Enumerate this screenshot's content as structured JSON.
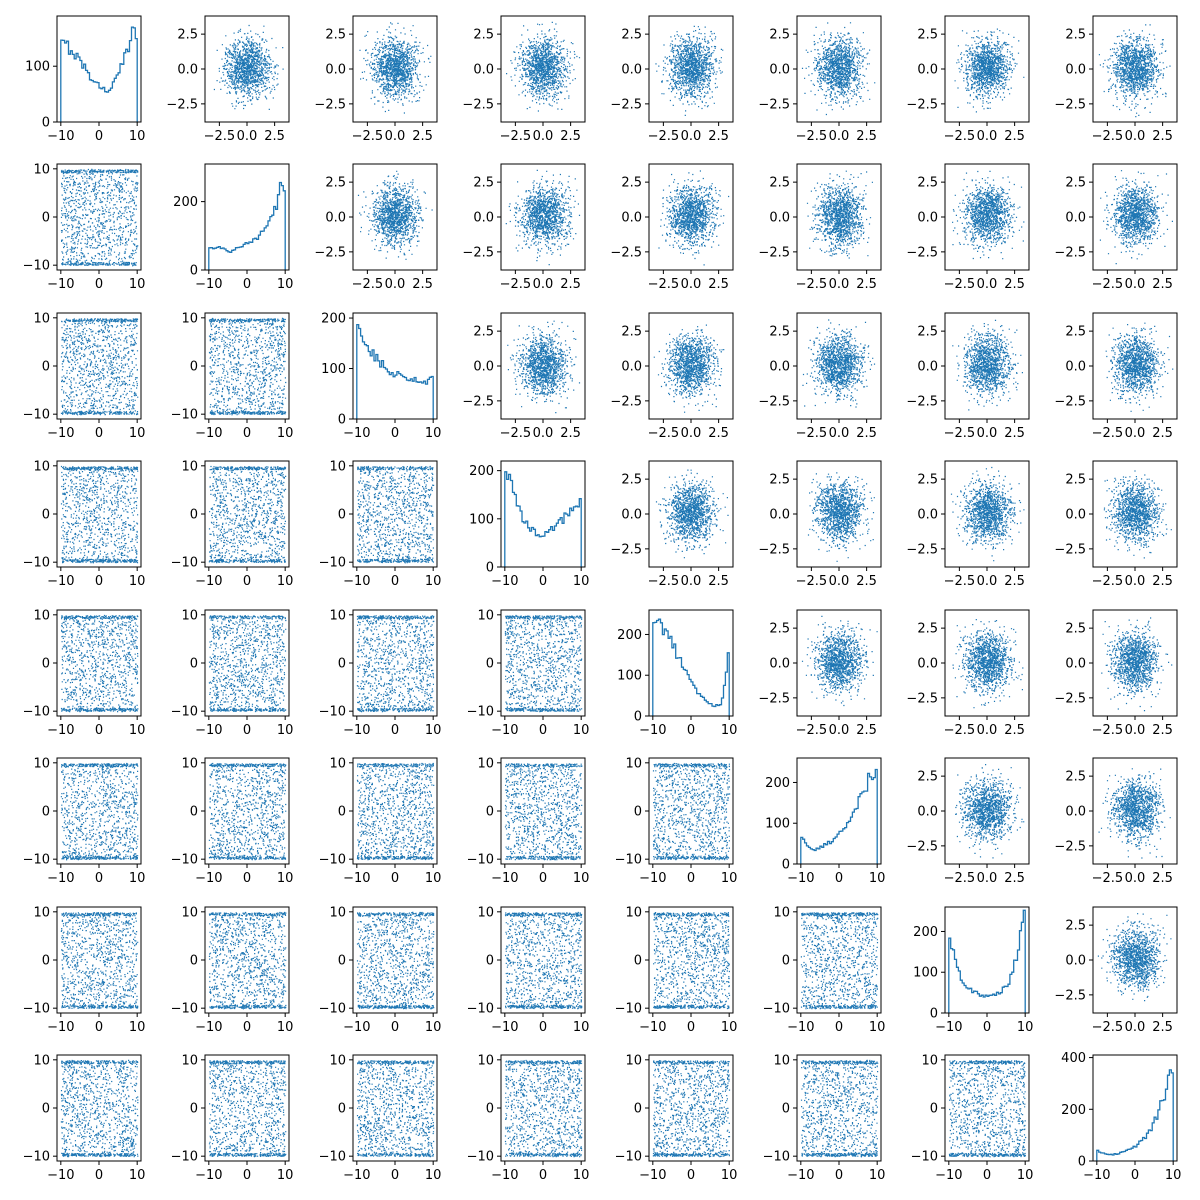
{
  "chart_data": {
    "type": "pair_plot",
    "grid": {
      "rows": 8,
      "cols": 8
    },
    "series_color": "#1f77b4",
    "diagonal_type": "step_histogram",
    "upper_triangle": {
      "type": "scatter",
      "xlim": [
        -3.8,
        3.8
      ],
      "ylim": [
        -3.8,
        3.8
      ],
      "xticks": [
        -2.5,
        0.0,
        2.5
      ],
      "xtick_labels": [
        "-2.5",
        "0.0",
        "2.5"
      ],
      "yticks": [
        -2.5,
        0.0,
        2.5
      ],
      "ytick_labels": [
        "-2.5",
        "0.0",
        "2.5"
      ]
    },
    "lower_triangle": {
      "type": "scatter",
      "xlim": [
        -11,
        11
      ],
      "ylim": [
        -11,
        11
      ],
      "xticks": [
        -10,
        0,
        10
      ],
      "xtick_labels": [
        "-10",
        "0",
        "10"
      ],
      "yticks": [
        -10,
        0,
        10
      ],
      "ytick_labels": [
        "-10",
        "0",
        "10"
      ]
    },
    "diagonal": [
      {
        "xlim": [
          -11,
          11
        ],
        "ylim": [
          0,
          190
        ],
        "yticks": [
          0,
          100
        ],
        "ytick_labels": [
          "0",
          "100"
        ],
        "x": [
          -10,
          -8,
          -6,
          -4,
          -2,
          0,
          2,
          4,
          6,
          8,
          9,
          10
        ],
        "counts": [
          140,
          135,
          120,
          100,
          80,
          65,
          55,
          70,
          100,
          140,
          180,
          150
        ]
      },
      {
        "xlim": [
          -11,
          11
        ],
        "ylim": [
          0,
          310
        ],
        "yticks": [
          0,
          200
        ],
        "ytick_labels": [
          "0",
          "200"
        ],
        "x": [
          -10,
          -8,
          -6,
          -4,
          -2,
          0,
          2,
          4,
          6,
          8,
          9,
          10
        ],
        "counts": [
          70,
          65,
          60,
          55,
          65,
          75,
          90,
          110,
          140,
          200,
          280,
          230
        ]
      },
      {
        "xlim": [
          -11,
          11
        ],
        "ylim": [
          0,
          210
        ],
        "yticks": [
          0,
          100,
          200
        ],
        "ytick_labels": [
          "0",
          "100",
          "200"
        ],
        "x": [
          -10,
          -8,
          -6,
          -4,
          -2,
          0,
          2,
          4,
          6,
          8,
          10
        ],
        "counts": [
          195,
          150,
          130,
          115,
          100,
          90,
          85,
          80,
          75,
          70,
          85
        ]
      },
      {
        "xlim": [
          -11,
          11
        ],
        "ylim": [
          0,
          220
        ],
        "yticks": [
          0,
          100,
          200
        ],
        "ytick_labels": [
          "0",
          "100",
          "200"
        ],
        "x": [
          -10,
          -8,
          -6,
          -4,
          -2,
          0,
          2,
          4,
          6,
          8,
          10
        ],
        "counts": [
          210,
          160,
          110,
          85,
          70,
          65,
          75,
          90,
          105,
          120,
          145
        ]
      },
      {
        "xlim": [
          -11,
          11
        ],
        "ylim": [
          0,
          260
        ],
        "yticks": [
          0,
          100,
          200
        ],
        "ytick_labels": [
          "0",
          "100",
          "200"
        ],
        "x": [
          -10,
          -8,
          -6,
          -4,
          -2,
          0,
          2,
          4,
          6,
          8,
          10
        ],
        "counts": [
          245,
          230,
          200,
          160,
          125,
          90,
          55,
          35,
          25,
          30,
          160
        ]
      },
      {
        "xlim": [
          -11,
          11
        ],
        "ylim": [
          0,
          260
        ],
        "yticks": [
          0,
          100,
          200
        ],
        "ytick_labels": [
          "0",
          "100",
          "200"
        ],
        "x": [
          -10,
          -8,
          -6,
          -4,
          -2,
          0,
          2,
          4,
          6,
          8,
          10
        ],
        "counts": [
          70,
          40,
          35,
          45,
          55,
          75,
          100,
          130,
          165,
          210,
          240
        ]
      },
      {
        "xlim": [
          -11,
          11
        ],
        "ylim": [
          0,
          260
        ],
        "yticks": [
          0,
          100,
          200
        ],
        "ytick_labels": [
          "0",
          "100",
          "200"
        ],
        "x": [
          -10,
          -8,
          -6,
          -4,
          -2,
          0,
          2,
          4,
          6,
          8,
          10
        ],
        "counts": [
          200,
          110,
          70,
          55,
          45,
          40,
          45,
          55,
          80,
          150,
          245
        ]
      },
      {
        "xlim": [
          -11,
          11
        ],
        "ylim": [
          0,
          410
        ],
        "yticks": [
          0,
          200,
          400
        ],
        "ytick_labels": [
          "0",
          "200",
          "400"
        ],
        "x": [
          -10,
          -8,
          -6,
          -4,
          -2,
          0,
          2,
          4,
          6,
          8,
          10
        ],
        "counts": [
          40,
          30,
          25,
          30,
          40,
          55,
          80,
          120,
          180,
          270,
          380
        ]
      }
    ]
  }
}
